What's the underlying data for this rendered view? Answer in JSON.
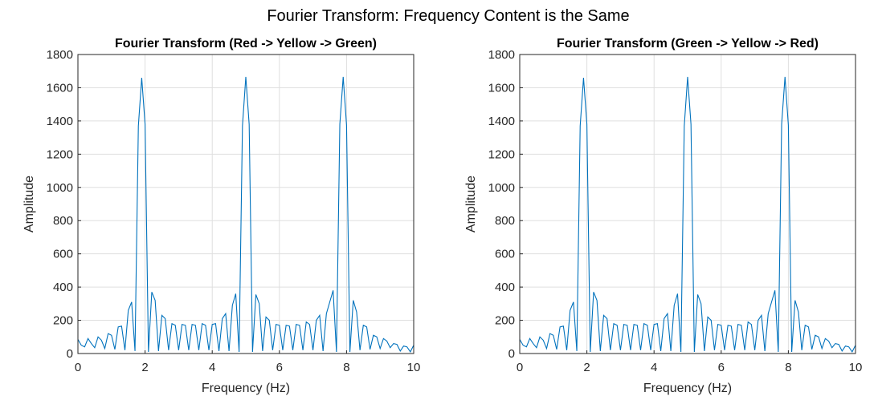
{
  "figure": {
    "title": "Fourier Transform: Frequency Content is the Same",
    "line_color": "#0072bd",
    "grid_color": "#dfdfdf",
    "axis_color": "#262626"
  },
  "chart_data": [
    {
      "type": "line",
      "title": "Fourier Transform (Red -> Yellow -> Green)",
      "xlabel": "Frequency (Hz)",
      "ylabel": "Amplitude",
      "xlim": [
        0,
        10
      ],
      "ylim": [
        0,
        1800
      ],
      "xticks": [
        "0",
        "2",
        "4",
        "6",
        "8",
        "10"
      ],
      "yticks": [
        "0",
        "200",
        "400",
        "600",
        "800",
        "1000",
        "1200",
        "1400",
        "1600",
        "1800"
      ],
      "grid": true,
      "series": [
        {
          "x": [
            0,
            0.1,
            0.2,
            0.3,
            0.4,
            0.5,
            0.6,
            0.7,
            0.8,
            0.9,
            1.0,
            1.1,
            1.2,
            1.3,
            1.4,
            1.5,
            1.6,
            1.7,
            1.8,
            1.9,
            2.0,
            2.1,
            2.2,
            2.3,
            2.4,
            2.5,
            2.6,
            2.7,
            2.8,
            2.9,
            3.0,
            3.1,
            3.2,
            3.3,
            3.4,
            3.5,
            3.6,
            3.7,
            3.8,
            3.9,
            4.0,
            4.1,
            4.2,
            4.3,
            4.4,
            4.5,
            4.6,
            4.7,
            4.8,
            4.9,
            5.0,
            5.1,
            5.2,
            5.3,
            5.4,
            5.5,
            5.6,
            5.7,
            5.8,
            5.9,
            6.0,
            6.1,
            6.2,
            6.3,
            6.4,
            6.5,
            6.6,
            6.7,
            6.8,
            6.9,
            7.0,
            7.1,
            7.2,
            7.3,
            7.4,
            7.5,
            7.6,
            7.7,
            7.8,
            7.9,
            8.0,
            8.1,
            8.2,
            8.3,
            8.4,
            8.5,
            8.6,
            8.7,
            8.8,
            8.9,
            9.0,
            9.1,
            9.2,
            9.3,
            9.4,
            9.5,
            9.6,
            9.7,
            9.8,
            9.9,
            10.0
          ],
          "y": [
            85,
            50,
            40,
            90,
            60,
            35,
            100,
            80,
            30,
            120,
            110,
            25,
            160,
            165,
            20,
            260,
            310,
            15,
            1370,
            1660,
            1380,
            10,
            370,
            320,
            15,
            230,
            210,
            20,
            180,
            170,
            20,
            175,
            170,
            20,
            175,
            170,
            20,
            180,
            170,
            20,
            175,
            180,
            15,
            210,
            240,
            15,
            290,
            360,
            10,
            1370,
            1665,
            1380,
            10,
            355,
            300,
            15,
            220,
            200,
            20,
            175,
            170,
            20,
            170,
            165,
            20,
            175,
            170,
            20,
            190,
            175,
            20,
            200,
            230,
            15,
            240,
            310,
            380,
            10,
            1380,
            1665,
            1375,
            10,
            320,
            250,
            20,
            170,
            160,
            25,
            110,
            100,
            30,
            90,
            75,
            35,
            60,
            55,
            15,
            45,
            40,
            10,
            50
          ]
        }
      ]
    },
    {
      "type": "line",
      "title": "Fourier Transform (Green -> Yellow -> Red)",
      "xlabel": "Frequency (Hz)",
      "ylabel": "Amplitude",
      "xlim": [
        0,
        10
      ],
      "ylim": [
        0,
        1800
      ],
      "xticks": [
        "0",
        "2",
        "4",
        "6",
        "8",
        "10"
      ],
      "yticks": [
        "0",
        "200",
        "400",
        "600",
        "800",
        "1000",
        "1200",
        "1400",
        "1600",
        "1800"
      ],
      "grid": true,
      "series": [
        {
          "x": [
            0,
            0.1,
            0.2,
            0.3,
            0.4,
            0.5,
            0.6,
            0.7,
            0.8,
            0.9,
            1.0,
            1.1,
            1.2,
            1.3,
            1.4,
            1.5,
            1.6,
            1.7,
            1.8,
            1.9,
            2.0,
            2.1,
            2.2,
            2.3,
            2.4,
            2.5,
            2.6,
            2.7,
            2.8,
            2.9,
            3.0,
            3.1,
            3.2,
            3.3,
            3.4,
            3.5,
            3.6,
            3.7,
            3.8,
            3.9,
            4.0,
            4.1,
            4.2,
            4.3,
            4.4,
            4.5,
            4.6,
            4.7,
            4.8,
            4.9,
            5.0,
            5.1,
            5.2,
            5.3,
            5.4,
            5.5,
            5.6,
            5.7,
            5.8,
            5.9,
            6.0,
            6.1,
            6.2,
            6.3,
            6.4,
            6.5,
            6.6,
            6.7,
            6.8,
            6.9,
            7.0,
            7.1,
            7.2,
            7.3,
            7.4,
            7.5,
            7.6,
            7.7,
            7.8,
            7.9,
            8.0,
            8.1,
            8.2,
            8.3,
            8.4,
            8.5,
            8.6,
            8.7,
            8.8,
            8.9,
            9.0,
            9.1,
            9.2,
            9.3,
            9.4,
            9.5,
            9.6,
            9.7,
            9.8,
            9.9,
            10.0
          ],
          "y": [
            85,
            50,
            40,
            90,
            60,
            35,
            100,
            80,
            30,
            120,
            110,
            25,
            160,
            165,
            20,
            260,
            310,
            15,
            1370,
            1660,
            1380,
            10,
            370,
            320,
            15,
            230,
            210,
            20,
            180,
            170,
            20,
            175,
            170,
            20,
            175,
            170,
            20,
            180,
            170,
            20,
            175,
            180,
            15,
            210,
            240,
            15,
            290,
            360,
            10,
            1370,
            1665,
            1380,
            10,
            355,
            300,
            15,
            220,
            200,
            20,
            175,
            170,
            20,
            170,
            165,
            20,
            175,
            170,
            20,
            190,
            175,
            20,
            200,
            230,
            15,
            240,
            310,
            380,
            10,
            1380,
            1665,
            1375,
            10,
            320,
            250,
            20,
            170,
            160,
            25,
            110,
            100,
            30,
            90,
            75,
            35,
            60,
            55,
            15,
            45,
            40,
            10,
            50
          ]
        }
      ]
    }
  ]
}
